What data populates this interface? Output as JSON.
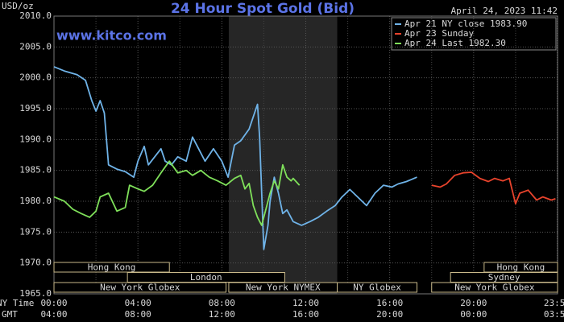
{
  "chart_data": {
    "type": "line",
    "title": "24 Hour Spot Gold (Bid)",
    "timestamp": "April 24, 2023 11:42",
    "watermark": "www.kitco.com",
    "y_unit": "USD/oz",
    "x_row_labels": [
      "NY Time",
      "GMT"
    ],
    "xlim": [
      0,
      24
    ],
    "xticks": [
      {
        "value": 0,
        "label": "00:00"
      },
      {
        "value": 4,
        "label": "04:00"
      },
      {
        "value": 8,
        "label": "08:00"
      },
      {
        "value": 12,
        "label": "12:00"
      },
      {
        "value": 16,
        "label": "16:00"
      },
      {
        "value": 20,
        "label": "20:00"
      },
      {
        "value": 23.98,
        "label": "23:59"
      }
    ],
    "gmt_labels": [
      "04:00",
      "08:00",
      "12:00",
      "16:00",
      "20:00",
      "00:00",
      "03:59"
    ],
    "x_minor_ticks": [
      2,
      6,
      10,
      14,
      18,
      22
    ],
    "ylim": [
      1965,
      2010
    ],
    "yticks": [
      {
        "value": 1965,
        "label": "1965.0"
      },
      {
        "value": 1970,
        "label": "1970.0"
      },
      {
        "value": 1975,
        "label": "1975.0"
      },
      {
        "value": 1980,
        "label": "1980.0"
      },
      {
        "value": 1985,
        "label": "1985.0"
      },
      {
        "value": 1990,
        "label": "1990.0"
      },
      {
        "value": 1995,
        "label": "1995.0"
      },
      {
        "value": 2000,
        "label": "2000.0"
      },
      {
        "value": 2005,
        "label": "2005.0"
      },
      {
        "value": 2010,
        "label": "2010.0"
      }
    ],
    "grid": true,
    "highlight_hours": [
      8.33,
      13.5
    ],
    "sessions": [
      [
        {
          "name": "Hong Kong",
          "start": 0,
          "end": 5.5
        },
        {
          "name": "Hong Kong",
          "start": 20.5,
          "end": 24
        }
      ],
      [
        {
          "name": "London",
          "start": 3.5,
          "end": 11
        },
        {
          "name": "Sydney",
          "start": 18.9,
          "end": 24
        }
      ],
      [
        {
          "name": "New York Globex",
          "start": 0,
          "end": 8.2
        },
        {
          "name": "New York NYMEX",
          "start": 8.33,
          "end": 13.5
        },
        {
          "name": "NY Globex",
          "start": 13.5,
          "end": 17.3
        },
        {
          "name": "New York Globex",
          "start": 18,
          "end": 24
        }
      ]
    ],
    "series": [
      {
        "name": "Apr 21 NY close 1983.90",
        "color": "#6fb3e8",
        "x": [
          0.0,
          0.5,
          1.1,
          1.5,
          1.8,
          2.0,
          2.2,
          2.4,
          2.6,
          3.0,
          3.4,
          3.8,
          4.0,
          4.3,
          4.5,
          4.8,
          5.1,
          5.3,
          5.6,
          5.9,
          6.3,
          6.6,
          6.8,
          7.2,
          7.6,
          8.0,
          8.3,
          8.6,
          8.9,
          9.3,
          9.7,
          9.8,
          9.9,
          10.0,
          10.2,
          10.3,
          10.5,
          10.7,
          10.9,
          11.1,
          11.4,
          11.8,
          12.2,
          12.6,
          13.0,
          13.4,
          13.7,
          14.1,
          14.5,
          14.9,
          15.3,
          15.7,
          16.1,
          16.4,
          16.8,
          17.3
        ],
        "values": [
          2001.8,
          2001.1,
          2000.5,
          1999.6,
          1996.3,
          1994.6,
          1996.3,
          1994.3,
          1985.9,
          1985.2,
          1984.8,
          1983.9,
          1986.5,
          1988.9,
          1985.9,
          1987.2,
          1988.5,
          1986.5,
          1985.9,
          1987.2,
          1986.5,
          1990.4,
          1989.1,
          1986.5,
          1988.5,
          1986.5,
          1983.9,
          1989.1,
          1989.8,
          1991.7,
          1995.7,
          1990.4,
          1981.3,
          1972.2,
          1976.1,
          1980.0,
          1983.9,
          1981.3,
          1978.0,
          1978.6,
          1976.7,
          1976.1,
          1976.7,
          1977.4,
          1978.4,
          1979.3,
          1980.6,
          1981.9,
          1980.6,
          1979.3,
          1981.3,
          1982.6,
          1982.3,
          1982.8,
          1983.2,
          1983.9
        ]
      },
      {
        "name": "Apr 23 Sunday",
        "color": "#e8432c",
        "x": [
          18.0,
          18.4,
          18.7,
          19.1,
          19.5,
          19.9,
          20.3,
          20.7,
          21.0,
          21.4,
          21.7,
          22.0,
          22.2,
          22.6,
          23.0,
          23.3,
          23.7,
          23.9
        ],
        "values": [
          1982.6,
          1982.3,
          1982.8,
          1984.2,
          1984.6,
          1984.7,
          1983.7,
          1983.2,
          1983.7,
          1983.3,
          1983.7,
          1979.6,
          1981.3,
          1981.8,
          1980.2,
          1980.7,
          1980.2,
          1980.4
        ]
      },
      {
        "name": "Apr 24 Last 1982.30",
        "color": "#7fe05a",
        "x": [
          0,
          0.5,
          0.9,
          1.3,
          1.7,
          2.0,
          2.2,
          2.6,
          3.0,
          3.4,
          3.6,
          4.0,
          4.3,
          4.7,
          5.1,
          5.5,
          5.9,
          6.3,
          6.6,
          7.0,
          7.4,
          7.8,
          8.2,
          8.6,
          8.9,
          9.1,
          9.3,
          9.5,
          9.7,
          9.9,
          10.1,
          10.3,
          10.5,
          10.7,
          10.9,
          11.1,
          11.3,
          11.4,
          11.7
        ],
        "values": [
          1980.7,
          1980.0,
          1978.7,
          1978.0,
          1977.4,
          1978.4,
          1980.7,
          1981.3,
          1978.4,
          1979.0,
          1982.6,
          1982.0,
          1981.6,
          1982.6,
          1984.6,
          1986.5,
          1984.6,
          1985.0,
          1984.2,
          1985.0,
          1983.9,
          1983.3,
          1982.6,
          1983.7,
          1984.2,
          1982.0,
          1982.9,
          1979.3,
          1977.4,
          1976.1,
          1978.7,
          1981.3,
          1983.3,
          1982.0,
          1985.9,
          1983.9,
          1983.3,
          1983.7,
          1982.6
        ]
      }
    ]
  }
}
